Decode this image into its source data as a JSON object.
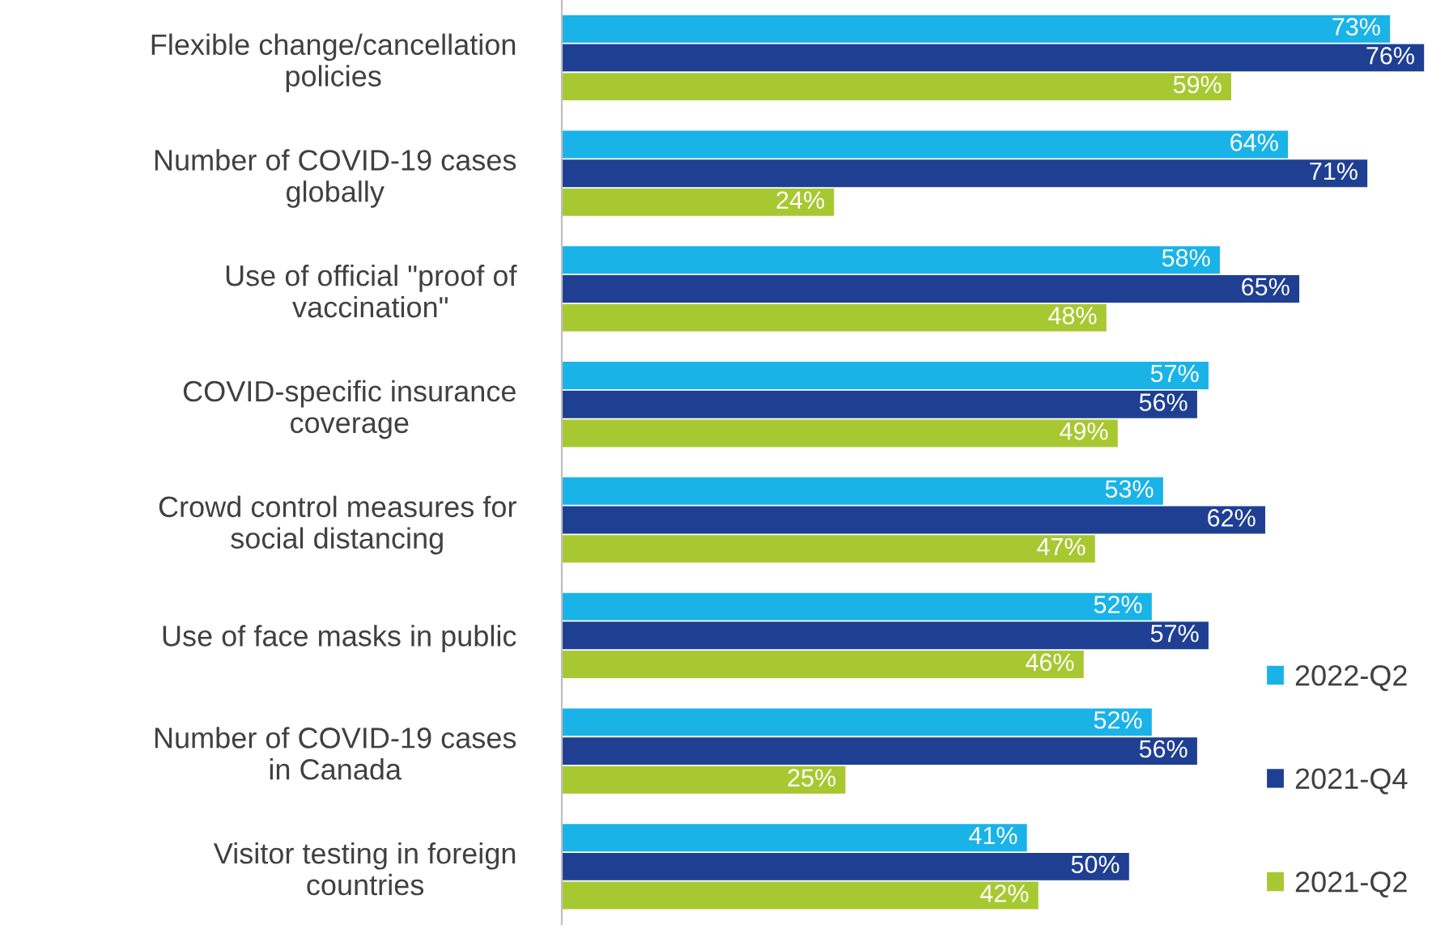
{
  "chart_data": {
    "type": "bar",
    "orientation": "horizontal",
    "legend": "right",
    "categories": [
      "Flexible change/cancellation\npolicies",
      "Number of COVID-19 cases\nglobally",
      "Use of official \"proof of\nvaccination\"",
      "COVID-specific insurance\ncoverage",
      "Crowd control measures for\nsocial distancing",
      "Use of face masks in public",
      "Number of COVID-19 cases\nin Canada",
      "Visitor testing in foreign\ncountries"
    ],
    "series": [
      {
        "name": "2022-Q2",
        "color": "#1ab3e8",
        "values": [
          73,
          64,
          58,
          57,
          53,
          52,
          52,
          41
        ],
        "value_labels": [
          "73%",
          "64%",
          "58%",
          "57%",
          "53%",
          "52%",
          "52%",
          "41%"
        ]
      },
      {
        "name": "2021-Q4",
        "color": "#1f3f93",
        "values": [
          76,
          71,
          65,
          56,
          62,
          57,
          56,
          50
        ],
        "value_labels": [
          "76%",
          "71%",
          "65%",
          "56%",
          "62%",
          "57%",
          "56%",
          "50%"
        ]
      },
      {
        "name": "2021-Q2",
        "color": "#a8c832",
        "values": [
          59,
          24,
          48,
          49,
          47,
          46,
          25,
          42
        ],
        "value_labels": [
          "59%",
          "24%",
          "48%",
          "49%",
          "47%",
          "46%",
          "25%",
          "42%"
        ]
      }
    ]
  }
}
